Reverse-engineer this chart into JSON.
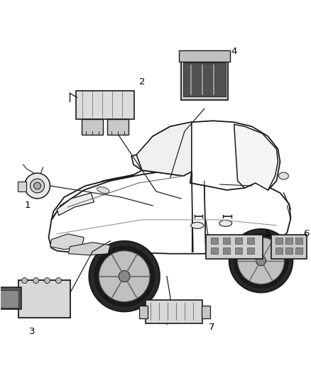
{
  "background_color": "#ffffff",
  "fig_width": 4.38,
  "fig_height": 5.33,
  "dpi": 100,
  "car_color": "#ffffff",
  "car_edge_color": "#1a1a1a",
  "car_lw": 1.3,
  "component_face": "#e0e0e0",
  "component_edge": "#1a1a1a",
  "label_fontsize": 9.5,
  "line_color": "#222222"
}
